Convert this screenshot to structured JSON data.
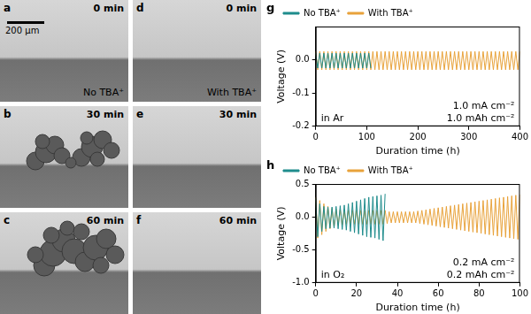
{
  "images": [
    {
      "panel": "a",
      "time": "0 min",
      "label": "No TBA⁺",
      "scale_bar": "200 μm"
    },
    {
      "panel": "b",
      "time": "30 min"
    },
    {
      "panel": "c",
      "time": "60 min"
    },
    {
      "panel": "d",
      "time": "0 min",
      "label": "With TBA⁺"
    },
    {
      "panel": "e",
      "time": "30 min"
    },
    {
      "panel": "f",
      "time": "60 min"
    }
  ],
  "chart_data": [
    {
      "type": "line",
      "panel": "g",
      "x_label": "Duration time (h)",
      "y_label": "Voltage (V)",
      "annotations": [
        "in Ar",
        "1.0 mA cm⁻²",
        "1.0 mAh cm⁻²"
      ],
      "legend": "top-left",
      "grid": false,
      "xlim": [
        0,
        400
      ],
      "xticks": [
        0,
        100,
        200,
        300,
        400
      ],
      "ylim": [
        -0.2,
        0.1
      ],
      "yticks": [
        -0.2,
        -0.1,
        {
          "value": 0,
          "label": "0.0"
        }
      ],
      "x": [
        0,
        4,
        8,
        12,
        16,
        20,
        24,
        28,
        32,
        36,
        40,
        44,
        48,
        52,
        56,
        60,
        64,
        68,
        72,
        76,
        80,
        84,
        88,
        92,
        96,
        100,
        104,
        108,
        112,
        116,
        120,
        124,
        128,
        132,
        136,
        140,
        144,
        148,
        152,
        156,
        160,
        164,
        168,
        172,
        176,
        180,
        184,
        188,
        192,
        196,
        200,
        204,
        208,
        212,
        216,
        220,
        224,
        228,
        232,
        236,
        240,
        244,
        248,
        252,
        256,
        260,
        264,
        268,
        272,
        276,
        280,
        284,
        288,
        292,
        296,
        300,
        304,
        308,
        312,
        316,
        320,
        324,
        328,
        332,
        336,
        340,
        344,
        348,
        352,
        356,
        360,
        364,
        368,
        372,
        376,
        380,
        384,
        388,
        392,
        396,
        400
      ],
      "series": [
        {
          "name": "No TBA⁺",
          "color": "#1f8c8c",
          "values": [
            0.02,
            -0.025,
            0.02,
            -0.025,
            0.02,
            -0.025,
            0.02,
            -0.025,
            0.02,
            -0.025,
            0.02,
            -0.025,
            0.02,
            -0.025,
            0.02,
            -0.025,
            0.02,
            -0.025,
            0.02,
            -0.025,
            0.02,
            -0.025,
            0.02,
            -0.025,
            0.02,
            -0.025,
            0.02,
            -0.025,
            null,
            null,
            null,
            null,
            null,
            null,
            null,
            null,
            null,
            null,
            null,
            null,
            null,
            null,
            null,
            null,
            null,
            null,
            null,
            null,
            null,
            null,
            null,
            null,
            null,
            null,
            null,
            null,
            null,
            null,
            null,
            null,
            null,
            null,
            null,
            null,
            null,
            null,
            null,
            null,
            null,
            null,
            null,
            null,
            null,
            null,
            null,
            null,
            null,
            null,
            null,
            null,
            null,
            null,
            null,
            null,
            null,
            null,
            null,
            null,
            null,
            null,
            null,
            null,
            null,
            null,
            null,
            null,
            null,
            null,
            null,
            null,
            null
          ]
        },
        {
          "name": "With TBA⁺",
          "color": "#e8a23a",
          "values": [
            0.025,
            -0.03,
            0.025,
            -0.03,
            0.025,
            -0.03,
            0.025,
            -0.03,
            0.025,
            -0.03,
            0.025,
            -0.03,
            0.025,
            -0.03,
            0.025,
            -0.03,
            0.025,
            -0.03,
            0.025,
            -0.03,
            0.025,
            -0.03,
            0.025,
            -0.03,
            0.025,
            -0.03,
            0.025,
            -0.03,
            0.025,
            -0.03,
            0.025,
            -0.03,
            0.025,
            -0.03,
            0.025,
            -0.03,
            0.025,
            -0.03,
            0.025,
            -0.03,
            0.025,
            -0.03,
            0.025,
            -0.03,
            0.025,
            -0.03,
            0.025,
            -0.03,
            0.025,
            -0.03,
            0.025,
            -0.03,
            0.025,
            -0.03,
            0.025,
            -0.03,
            0.025,
            -0.03,
            0.025,
            -0.03,
            0.025,
            -0.03,
            0.025,
            -0.03,
            0.025,
            -0.03,
            0.025,
            -0.03,
            0.025,
            -0.03,
            0.025,
            -0.03,
            0.025,
            -0.03,
            0.025,
            -0.03,
            0.025,
            -0.03,
            0.025,
            -0.03,
            0.025,
            -0.03,
            0.025,
            -0.03,
            0.025,
            -0.03,
            0.025,
            -0.03,
            0.025,
            -0.03,
            0.025,
            -0.03,
            0.025,
            -0.03,
            0.025,
            -0.03,
            0.025,
            -0.03,
            0.025,
            -0.03,
            0.025
          ]
        }
      ]
    },
    {
      "type": "line",
      "panel": "h",
      "x_label": "Duration time (h)",
      "y_label": "Voltage (V)",
      "annotations": [
        "in O₂",
        "0.2 mA cm⁻²",
        "0.2 mAh cm⁻²"
      ],
      "legend": "top-left",
      "grid": false,
      "xlim": [
        0,
        100
      ],
      "xticks": [
        0,
        20,
        40,
        60,
        80,
        100
      ],
      "ylim": [
        -1.0,
        0.5
      ],
      "yticks": [
        {
          "value": -1,
          "label": "-1.0"
        },
        -0.5,
        {
          "value": 0,
          "label": "0.0"
        },
        0.5
      ],
      "x": [
        0,
        1,
        2,
        3,
        4,
        5,
        6,
        7,
        8,
        9,
        10,
        11,
        12,
        13,
        14,
        15,
        16,
        17,
        18,
        19,
        20,
        21,
        22,
        23,
        24,
        25,
        26,
        27,
        28,
        29,
        30,
        31,
        32,
        33,
        34,
        35,
        36,
        37,
        38,
        39,
        40,
        41,
        42,
        43,
        44,
        45,
        46,
        47,
        48,
        49,
        50,
        51,
        52,
        53,
        54,
        55,
        56,
        57,
        58,
        59,
        60,
        61,
        62,
        63,
        64,
        65,
        66,
        67,
        68,
        69,
        70,
        71,
        72,
        73,
        74,
        75,
        76,
        77,
        78,
        79,
        80,
        81,
        82,
        83,
        84,
        85,
        86,
        87,
        88,
        89,
        90,
        91,
        92,
        93,
        94,
        95,
        96,
        97,
        98,
        99,
        100
      ],
      "series": [
        {
          "name": "No TBA⁺",
          "color": "#1f8c8c",
          "values": [
            0.28,
            -0.3,
            0.2,
            -0.22,
            0.16,
            -0.18,
            0.15,
            -0.17,
            0.15,
            -0.17,
            0.16,
            -0.18,
            0.17,
            -0.19,
            0.18,
            -0.2,
            0.2,
            -0.22,
            0.22,
            -0.24,
            0.24,
            -0.26,
            0.26,
            -0.28,
            0.28,
            -0.3,
            0.3,
            -0.31,
            0.31,
            -0.32,
            0.32,
            -0.34,
            0.33,
            -0.36,
            0.35,
            null,
            null,
            null,
            null,
            null,
            null,
            null,
            null,
            null,
            null,
            null,
            null,
            null,
            null,
            null,
            null,
            null,
            null,
            null,
            null,
            null,
            null,
            null,
            null,
            null,
            null,
            null,
            null,
            null,
            null,
            null,
            null,
            null,
            null,
            null,
            null,
            null,
            null,
            null,
            null,
            null,
            null,
            null,
            null,
            null,
            null,
            null,
            null,
            null,
            null,
            null,
            null,
            null,
            null,
            null,
            null,
            null,
            null,
            null,
            null,
            null,
            null,
            null,
            null,
            null,
            null
          ]
        },
        {
          "name": "With TBA⁺",
          "color": "#e8a23a",
          "values": [
            0.3,
            -0.32,
            0.25,
            -0.27,
            0.2,
            -0.22,
            0.16,
            -0.18,
            0.13,
            -0.15,
            0.12,
            -0.13,
            0.11,
            -0.12,
            0.1,
            -0.11,
            0.1,
            -0.11,
            0.1,
            -0.11,
            0.1,
            -0.11,
            0.1,
            -0.11,
            0.1,
            -0.11,
            0.1,
            -0.11,
            0.1,
            -0.11,
            0.1,
            -0.11,
            0.1,
            -0.11,
            0.1,
            -0.1,
            0.08,
            -0.09,
            0.08,
            -0.09,
            0.08,
            -0.09,
            0.08,
            -0.09,
            0.08,
            -0.09,
            0.08,
            -0.09,
            0.08,
            -0.09,
            0.09,
            -0.1,
            0.1,
            -0.11,
            0.11,
            -0.12,
            0.12,
            -0.13,
            0.13,
            -0.14,
            0.14,
            -0.15,
            0.15,
            -0.16,
            0.16,
            -0.17,
            0.17,
            -0.18,
            0.18,
            -0.19,
            0.19,
            -0.2,
            0.2,
            -0.21,
            0.21,
            -0.22,
            0.22,
            -0.23,
            0.23,
            -0.24,
            0.24,
            -0.25,
            0.25,
            -0.26,
            0.26,
            -0.27,
            0.27,
            -0.28,
            0.28,
            -0.29,
            0.29,
            -0.3,
            0.3,
            -0.31,
            0.31,
            -0.32,
            0.32,
            -0.33,
            0.33,
            -0.34,
            0.34
          ]
        }
      ]
    }
  ]
}
